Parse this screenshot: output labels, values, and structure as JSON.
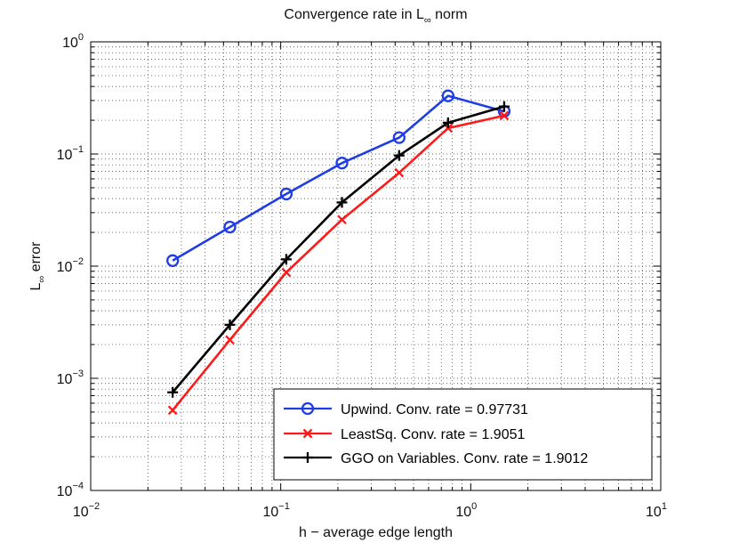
{
  "chart_data": {
    "type": "line",
    "title": {
      "prefix": "Convergence rate in L",
      "subscript": "∞",
      "suffix": " norm"
    },
    "xlabel": "h − average edge length",
    "ylabel": {
      "prefix": "L",
      "subscript": "∞",
      "suffix": " error"
    },
    "xscale": "log",
    "yscale": "log",
    "xlim": [
      0.01,
      10
    ],
    "ylim": [
      0.0001,
      1
    ],
    "x_ticks": [
      {
        "base": "10",
        "exp": "−2"
      },
      {
        "base": "10",
        "exp": "−1"
      },
      {
        "base": "10",
        "exp": "0"
      },
      {
        "base": "10",
        "exp": "1"
      }
    ],
    "y_ticks": [
      {
        "base": "10",
        "exp": "−4"
      },
      {
        "base": "10",
        "exp": "−3"
      },
      {
        "base": "10",
        "exp": "−2"
      },
      {
        "base": "10",
        "exp": "−1"
      },
      {
        "base": "10",
        "exp": "0"
      }
    ],
    "grid": "major-and-minor dotted",
    "legend_position": "bottom-right",
    "series": [
      {
        "name": "Upwind. Conv. rate = 0.97731",
        "color": "#1f3de6",
        "marker": "circle",
        "x": [
          0.027,
          0.054,
          0.107,
          0.21,
          0.42,
          0.76,
          1.5
        ],
        "y": [
          0.0112,
          0.0223,
          0.044,
          0.083,
          0.14,
          0.33,
          0.24
        ]
      },
      {
        "name": "LeastSq. Conv. rate = 1.9051",
        "color": "#ff1a1a",
        "marker": "x",
        "x": [
          0.027,
          0.054,
          0.107,
          0.21,
          0.42,
          0.76,
          1.5
        ],
        "y": [
          0.00052,
          0.0022,
          0.0088,
          0.026,
          0.068,
          0.17,
          0.22
        ]
      },
      {
        "name": "GGO on Variables. Conv. rate = 1.9012",
        "color": "#000000",
        "marker": "plus",
        "x": [
          0.027,
          0.054,
          0.107,
          0.21,
          0.42,
          0.76,
          1.5
        ],
        "y": [
          0.00075,
          0.003,
          0.0115,
          0.037,
          0.097,
          0.19,
          0.265
        ]
      }
    ]
  }
}
